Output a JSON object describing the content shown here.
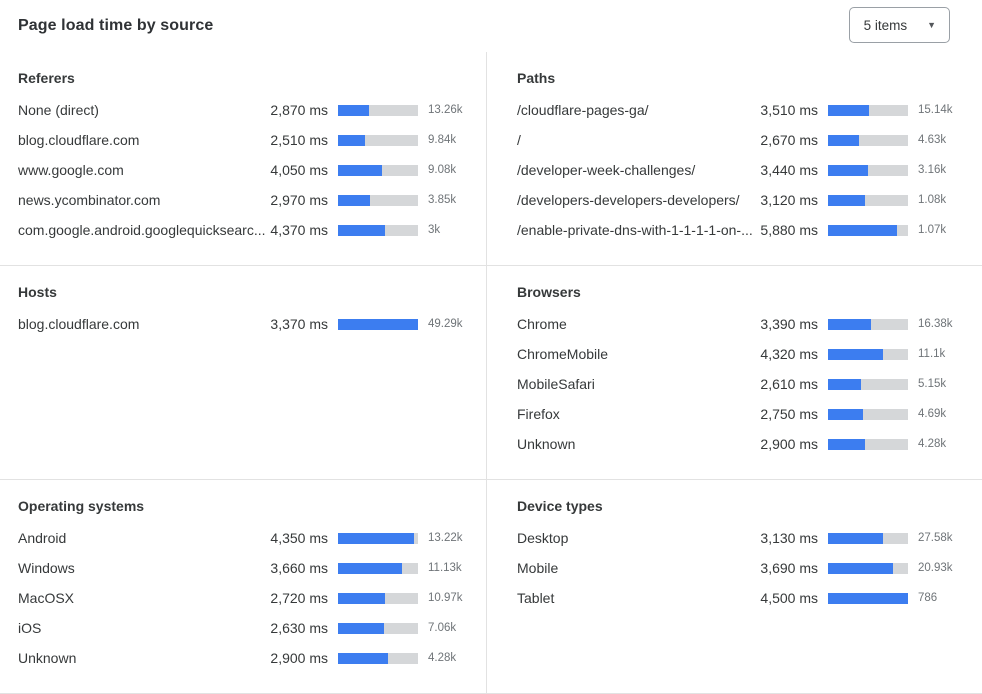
{
  "header": {
    "title": "Page load time by source",
    "items_selector": {
      "value": "5 items"
    }
  },
  "colors": {
    "bar_fill": "#3c7df0",
    "bar_track": "#d5d7d9",
    "text": "#36393a",
    "muted_count": "#6f7478",
    "divider": "#e2e2e2"
  },
  "chart_data": [
    {
      "type": "bar",
      "title": "Referers",
      "slug": "referers",
      "unit": "ms",
      "columns": [
        "label",
        "load_time_ms",
        "bar",
        "count"
      ],
      "rows": [
        {
          "label": "None (direct)",
          "ms": 2870,
          "ms_label": "2,870 ms",
          "count": "13.26k",
          "bar_pct": 38.8
        },
        {
          "label": "blog.cloudflare.com",
          "ms": 2510,
          "ms_label": "2,510 ms",
          "count": "9.84k",
          "bar_pct": 33.9
        },
        {
          "label": "www.google.com",
          "ms": 4050,
          "ms_label": "4,050 ms",
          "count": "9.08k",
          "bar_pct": 54.7
        },
        {
          "label": "news.ycombinator.com",
          "ms": 2970,
          "ms_label": "2,970 ms",
          "count": "3.85k",
          "bar_pct": 40.1
        },
        {
          "label": "com.google.android.googlequicksearc...",
          "ms": 4370,
          "ms_label": "4,370 ms",
          "count": "3k",
          "bar_pct": 59.1
        }
      ]
    },
    {
      "type": "bar",
      "title": "Paths",
      "slug": "paths",
      "unit": "ms",
      "columns": [
        "label",
        "load_time_ms",
        "bar",
        "count"
      ],
      "rows": [
        {
          "label": "/cloudflare-pages-ga/",
          "ms": 3510,
          "ms_label": "3,510 ms",
          "count": "15.14k",
          "bar_pct": 51.6
        },
        {
          "label": "/",
          "ms": 2670,
          "ms_label": "2,670 ms",
          "count": "4.63k",
          "bar_pct": 39.3
        },
        {
          "label": "/developer-week-challenges/",
          "ms": 3440,
          "ms_label": "3,440 ms",
          "count": "3.16k",
          "bar_pct": 50.6
        },
        {
          "label": "/developers-developers-developers/",
          "ms": 3120,
          "ms_label": "3,120 ms",
          "count": "1.08k",
          "bar_pct": 45.9
        },
        {
          "label": "/enable-private-dns-with-1-1-1-1-on-...",
          "ms": 5880,
          "ms_label": "5,880 ms",
          "count": "1.07k",
          "bar_pct": 86.5
        }
      ]
    },
    {
      "type": "bar",
      "title": "Hosts",
      "slug": "hosts",
      "unit": "ms",
      "columns": [
        "label",
        "load_time_ms",
        "bar",
        "count"
      ],
      "rows": [
        {
          "label": "blog.cloudflare.com",
          "ms": 3370,
          "ms_label": "3,370 ms",
          "count": "49.29k",
          "bar_pct": 100
        }
      ]
    },
    {
      "type": "bar",
      "title": "Browsers",
      "slug": "browsers",
      "unit": "ms",
      "columns": [
        "label",
        "load_time_ms",
        "bar",
        "count"
      ],
      "rows": [
        {
          "label": "Chrome",
          "ms": 3390,
          "ms_label": "3,390 ms",
          "count": "16.38k",
          "bar_pct": 53.8
        },
        {
          "label": "ChromeMobile",
          "ms": 4320,
          "ms_label": "4,320 ms",
          "count": "11.1k",
          "bar_pct": 68.6
        },
        {
          "label": "MobileSafari",
          "ms": 2610,
          "ms_label": "2,610 ms",
          "count": "5.15k",
          "bar_pct": 41.4
        },
        {
          "label": "Firefox",
          "ms": 2750,
          "ms_label": "2,750 ms",
          "count": "4.69k",
          "bar_pct": 43.7
        },
        {
          "label": "Unknown",
          "ms": 2900,
          "ms_label": "2,900 ms",
          "count": "4.28k",
          "bar_pct": 46.0
        }
      ]
    },
    {
      "type": "bar",
      "title": "Operating systems",
      "slug": "operating-systems",
      "unit": "ms",
      "columns": [
        "label",
        "load_time_ms",
        "bar",
        "count"
      ],
      "rows": [
        {
          "label": "Android",
          "ms": 4350,
          "ms_label": "4,350 ms",
          "count": "13.22k",
          "bar_pct": 94.6
        },
        {
          "label": "Windows",
          "ms": 3660,
          "ms_label": "3,660 ms",
          "count": "11.13k",
          "bar_pct": 79.6
        },
        {
          "label": "MacOSX",
          "ms": 2720,
          "ms_label": "2,720 ms",
          "count": "10.97k",
          "bar_pct": 59.1
        },
        {
          "label": "iOS",
          "ms": 2630,
          "ms_label": "2,630 ms",
          "count": "7.06k",
          "bar_pct": 57.2
        },
        {
          "label": "Unknown",
          "ms": 2900,
          "ms_label": "2,900 ms",
          "count": "4.28k",
          "bar_pct": 63.0
        }
      ]
    },
    {
      "type": "bar",
      "title": "Device types",
      "slug": "device-types",
      "unit": "ms",
      "columns": [
        "label",
        "load_time_ms",
        "bar",
        "count"
      ],
      "rows": [
        {
          "label": "Desktop",
          "ms": 3130,
          "ms_label": "3,130 ms",
          "count": "27.58k",
          "bar_pct": 68.8
        },
        {
          "label": "Mobile",
          "ms": 3690,
          "ms_label": "3,690 ms",
          "count": "20.93k",
          "bar_pct": 81.1
        },
        {
          "label": "Tablet",
          "ms": 4500,
          "ms_label": "4,500 ms",
          "count": "786",
          "bar_pct": 100
        }
      ]
    }
  ]
}
